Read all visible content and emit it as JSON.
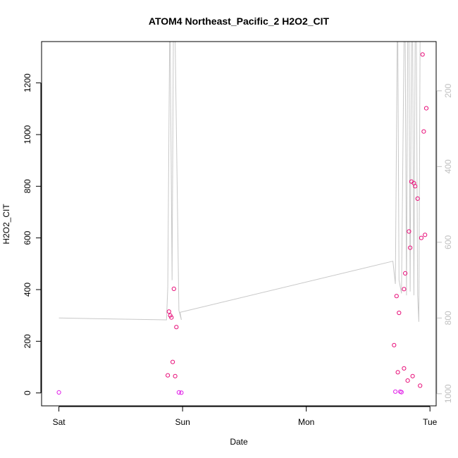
{
  "chart_data": {
    "type": "scatter",
    "title": "ATOM4 Northeast_Pacific_2 H2O2_CIT",
    "xlabel": "Date",
    "ylabel": "H2O2_CIT",
    "x_ticks": [
      "Sat",
      "Sun",
      "Mon",
      "Tue"
    ],
    "x_tick_values": [
      0,
      1,
      2,
      3
    ],
    "xlim": [
      -0.14,
      3.05
    ],
    "ylim": [
      -50,
      1360
    ],
    "y_ticks": [
      0,
      200,
      400,
      600,
      800,
      1000,
      1200
    ],
    "y2_ticks": [
      200,
      400,
      600,
      800,
      1000
    ],
    "y2lim": [
      1032,
      70
    ],
    "y2_reversed": true,
    "colors": {
      "points": "#e8107a",
      "points_low": "#e020e8",
      "line": "#c8c8c8",
      "frame": "#000000",
      "right_axis": "#c0c0c0"
    },
    "series": [
      {
        "type": "scatter",
        "points": [
          [
            0.0,
            2
          ],
          [
            0.88,
            68
          ],
          [
            0.89,
            315
          ],
          [
            0.9,
            300
          ],
          [
            0.91,
            292
          ],
          [
            0.92,
            120
          ],
          [
            0.93,
            403
          ],
          [
            0.94,
            65
          ],
          [
            0.95,
            255
          ],
          [
            0.97,
            2
          ],
          [
            0.99,
            1
          ],
          [
            2.71,
            185
          ],
          [
            2.72,
            5
          ],
          [
            2.73,
            375
          ],
          [
            2.74,
            80
          ],
          [
            2.75,
            310
          ],
          [
            2.76,
            5
          ],
          [
            2.77,
            3
          ],
          [
            2.79,
            402
          ],
          [
            2.79,
            95
          ],
          [
            2.8,
            463
          ],
          [
            2.82,
            48
          ],
          [
            2.83,
            625
          ],
          [
            2.84,
            562
          ],
          [
            2.85,
            818
          ],
          [
            2.86,
            65
          ],
          [
            2.87,
            812
          ],
          [
            2.88,
            800
          ],
          [
            2.9,
            752
          ],
          [
            2.92,
            28
          ],
          [
            2.93,
            600
          ],
          [
            2.94,
            1310
          ],
          [
            2.95,
            1012
          ],
          [
            2.96,
            612
          ],
          [
            2.97,
            1102
          ]
        ]
      },
      {
        "type": "line",
        "axis": "y2",
        "points": [
          [
            0.0,
            800
          ],
          [
            0.87,
            805
          ],
          [
            0.88,
            720
          ],
          [
            0.895,
            70
          ],
          [
            0.9,
            70
          ],
          [
            0.915,
            700
          ],
          [
            0.925,
            70
          ],
          [
            0.94,
            70
          ],
          [
            0.97,
            780
          ],
          [
            0.99,
            805
          ],
          [
            0.98,
            785
          ],
          [
            2.7,
            650
          ],
          [
            2.72,
            710
          ],
          [
            2.735,
            70
          ],
          [
            2.74,
            70
          ],
          [
            2.75,
            700
          ],
          [
            2.77,
            735
          ],
          [
            2.79,
            70
          ],
          [
            2.8,
            70
          ],
          [
            2.81,
            740
          ],
          [
            2.82,
            70
          ],
          [
            2.83,
            70
          ],
          [
            2.84,
            730
          ],
          [
            2.85,
            70
          ],
          [
            2.86,
            70
          ],
          [
            2.87,
            740
          ],
          [
            2.88,
            70
          ],
          [
            2.89,
            70
          ],
          [
            2.9,
            740
          ],
          [
            2.91,
            810
          ],
          [
            2.92,
            70
          ],
          [
            2.93,
            70
          ]
        ]
      }
    ]
  }
}
